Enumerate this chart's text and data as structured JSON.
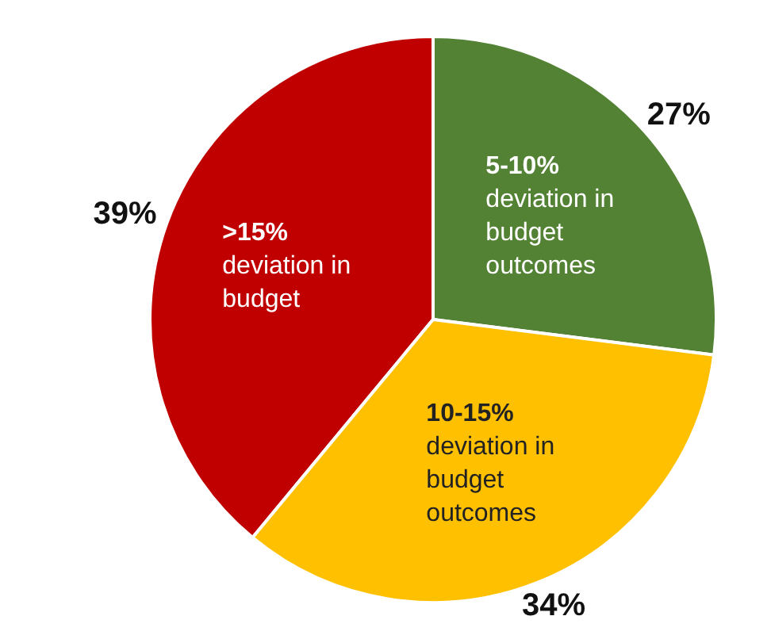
{
  "chart_data": {
    "type": "pie",
    "categories": [
      ">15% deviation in budget",
      "5-10% deviation in budget outcomes",
      "10-15% deviation in budget outcomes"
    ],
    "values": [
      39,
      27,
      34
    ],
    "colors": [
      "#c00000",
      "#548235",
      "#ffc000"
    ],
    "value_labels": [
      "39%",
      "27%",
      "34%"
    ]
  }
}
